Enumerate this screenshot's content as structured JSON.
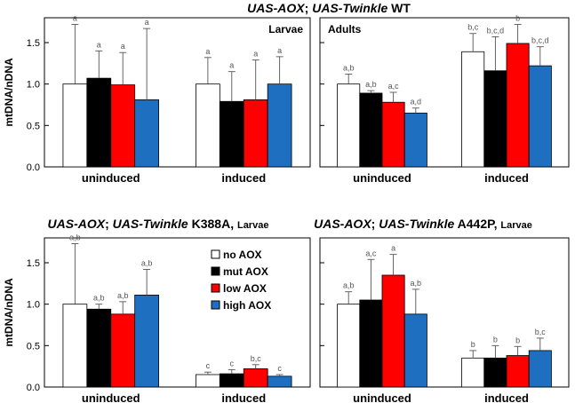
{
  "figure": {
    "top_title_parts": [
      "UAS-AOX",
      "; ",
      "UAS-Twinkle",
      " WT"
    ]
  },
  "legend": [
    {
      "label": "no AOX",
      "color": "#ffffff"
    },
    {
      "label": "mut AOX",
      "color": "#000000"
    },
    {
      "label": "low AOX",
      "color": "#ff0000"
    },
    {
      "label": "high AOX",
      "color": "#1f6fc0"
    }
  ],
  "chart_data": [
    {
      "type": "bar",
      "title": "",
      "inset_label": "Larvae",
      "ylabel": "mtDNA/nDNA",
      "ylim": [
        0,
        1.8
      ],
      "yticks": [
        "0.0",
        "0.5",
        "1.0",
        "1.5"
      ],
      "categories": [
        "uninduced",
        "induced"
      ],
      "series": [
        {
          "name": "no AOX",
          "values": [
            1.0,
            1.0
          ],
          "err": [
            0.72,
            0.32
          ],
          "sig": [
            "a",
            "a"
          ]
        },
        {
          "name": "mut AOX",
          "values": [
            1.07,
            0.79
          ],
          "err": [
            0.33,
            0.36
          ],
          "sig": [
            "a",
            "a"
          ]
        },
        {
          "name": "low AOX",
          "values": [
            0.99,
            0.81
          ],
          "err": [
            0.39,
            0.48
          ],
          "sig": [
            "a",
            "a"
          ]
        },
        {
          "name": "high AOX",
          "values": [
            0.81,
            1.0
          ],
          "err": [
            0.86,
            0.33
          ],
          "sig": [
            "a",
            "a"
          ]
        }
      ]
    },
    {
      "type": "bar",
      "title": "",
      "inset_label": "Adults",
      "ylabel": "",
      "ylim": [
        0,
        1.8
      ],
      "yticks": [],
      "categories": [
        "uninduced",
        "induced"
      ],
      "series": [
        {
          "name": "no AOX",
          "values": [
            1.0,
            1.39
          ],
          "err": [
            0.12,
            0.22
          ],
          "sig": [
            "a,b",
            "b,c"
          ]
        },
        {
          "name": "mut AOX",
          "values": [
            0.89,
            1.16
          ],
          "err": [
            0.03,
            0.41
          ],
          "sig": [
            "a,b",
            "b,c,d"
          ]
        },
        {
          "name": "low AOX",
          "values": [
            0.78,
            1.49
          ],
          "err": [
            0.12,
            0.23
          ],
          "sig": [
            "a,c",
            "b"
          ]
        },
        {
          "name": "high AOX",
          "values": [
            0.65,
            1.22
          ],
          "err": [
            0.06,
            0.23
          ],
          "sig": [
            "a,d",
            "b,c,d"
          ]
        }
      ]
    },
    {
      "type": "bar",
      "title_parts": [
        "UAS-AOX",
        "; ",
        "UAS-Twinkle",
        " K388A, ",
        "Larvae"
      ],
      "inset_label": "",
      "ylabel": "mtDNA/nDNA",
      "ylim": [
        0,
        1.8
      ],
      "yticks": [
        "0.0",
        "0.5",
        "1.0",
        "1.5"
      ],
      "categories": [
        "uninduced",
        "induced"
      ],
      "series": [
        {
          "name": "no AOX",
          "values": [
            1.0,
            0.15
          ],
          "err": [
            0.73,
            0.03
          ],
          "sig": [
            "a,b",
            "c"
          ]
        },
        {
          "name": "mut AOX",
          "values": [
            0.94,
            0.16
          ],
          "err": [
            0.06,
            0.05
          ],
          "sig": [
            "a,b",
            "c"
          ]
        },
        {
          "name": "low AOX",
          "values": [
            0.88,
            0.22
          ],
          "err": [
            0.15,
            0.05
          ],
          "sig": [
            "a,b",
            "b,c"
          ]
        },
        {
          "name": "high AOX",
          "values": [
            1.11,
            0.13
          ],
          "err": [
            0.31,
            0.02
          ],
          "sig": [
            "a,b",
            "c"
          ]
        }
      ]
    },
    {
      "type": "bar",
      "title_parts": [
        "UAS-AOX",
        "; ",
        "UAS-Twinkle",
        " A442P, ",
        "Larvae"
      ],
      "inset_label": "",
      "ylabel": "",
      "ylim": [
        0,
        1.8
      ],
      "yticks": [],
      "categories": [
        "uninduced",
        "induced"
      ],
      "series": [
        {
          "name": "no AOX",
          "values": [
            1.0,
            0.35
          ],
          "err": [
            0.15,
            0.09
          ],
          "sig": [
            "a,b",
            "b"
          ]
        },
        {
          "name": "mut AOX",
          "values": [
            1.05,
            0.35
          ],
          "err": [
            0.49,
            0.15
          ],
          "sig": [
            "a,c",
            "b"
          ]
        },
        {
          "name": "low AOX",
          "values": [
            1.35,
            0.38
          ],
          "err": [
            0.25,
            0.11
          ],
          "sig": [
            "a",
            "b"
          ]
        },
        {
          "name": "high AOX",
          "values": [
            0.88,
            0.44
          ],
          "err": [
            0.3,
            0.15
          ],
          "sig": [
            "a,b",
            "b,c"
          ]
        }
      ]
    }
  ]
}
